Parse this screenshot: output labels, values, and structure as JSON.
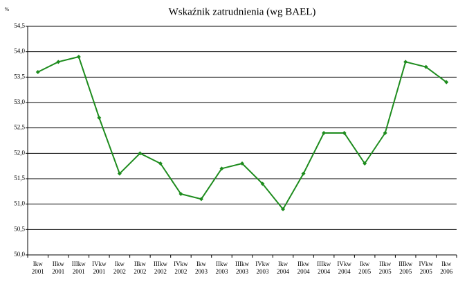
{
  "chart_data": {
    "type": "line",
    "title": "Wskaźnik zatrudnienia (wg BAEL)",
    "y_label": "%",
    "categories": [
      [
        "Ikw",
        "2001"
      ],
      [
        "IIkw",
        "2001"
      ],
      [
        "IIIkw",
        "2001"
      ],
      [
        "IVkw",
        "2001"
      ],
      [
        "Ikw",
        "2002"
      ],
      [
        "IIkw",
        "2002"
      ],
      [
        "IIIkw",
        "2002"
      ],
      [
        "IVkw",
        "2002"
      ],
      [
        "Ikw",
        "2003"
      ],
      [
        "IIkw",
        "2003"
      ],
      [
        "IIIkw",
        "2003"
      ],
      [
        "IVkw",
        "2003"
      ],
      [
        "Ikw",
        "2004"
      ],
      [
        "IIkw",
        "2004"
      ],
      [
        "IIIkw",
        "2004"
      ],
      [
        "IVkw",
        "2004"
      ],
      [
        "Ikw",
        "2005"
      ],
      [
        "IIkw",
        "2005"
      ],
      [
        "IIIkw",
        "2005"
      ],
      [
        "IVkw",
        "2005"
      ],
      [
        "Ikw",
        "2006"
      ]
    ],
    "values": [
      53.6,
      53.8,
      53.9,
      52.7,
      51.6,
      52.0,
      51.8,
      51.2,
      51.1,
      51.7,
      51.8,
      51.4,
      50.9,
      51.6,
      52.4,
      52.4,
      51.8,
      52.4,
      53.8,
      53.7,
      53.4
    ],
    "color": "#1e8c1e",
    "ylim": [
      50,
      54.5
    ],
    "yticks": [
      {
        "value": 50,
        "label": "50,0"
      },
      {
        "value": 50.5,
        "label": "50,5"
      },
      {
        "value": 51,
        "label": "51,0"
      },
      {
        "value": 51.5,
        "label": "51,5"
      },
      {
        "value": 52,
        "label": "52,0"
      },
      {
        "value": 52.5,
        "label": "52,5"
      },
      {
        "value": 53,
        "label": "53,0"
      },
      {
        "value": 53.5,
        "label": "53,5"
      },
      {
        "value": 54,
        "label": "54,0"
      },
      {
        "value": 54.5,
        "label": "54,5"
      }
    ],
    "grid": true
  }
}
